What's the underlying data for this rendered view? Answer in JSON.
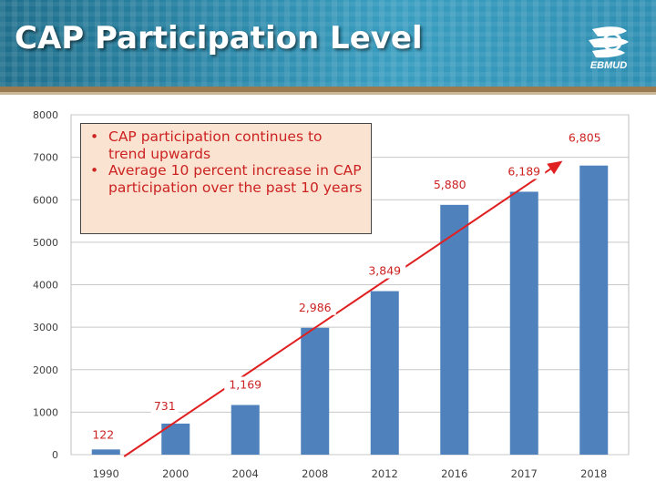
{
  "title": "CAP Participation Level",
  "logo_text": "EBMUD",
  "bullets": [
    "CAP participation continues to trend upwards",
    "Average 10 percent increase in CAP participation over the past 10 years"
  ],
  "colors": {
    "bar": "#4f81bd",
    "trend": "#e02020",
    "label": "#cc2222",
    "callout_bg": "#fbe3d1"
  },
  "chart_data": {
    "type": "bar",
    "categories": [
      "1990",
      "2000",
      "2004",
      "2008",
      "2012",
      "2016",
      "2017",
      "2018"
    ],
    "values": [
      122,
      731,
      1169,
      2986,
      3849,
      5880,
      6189,
      6805
    ],
    "data_labels": [
      "122",
      "731",
      "1,169",
      "2,986",
      "3,849",
      "5,880",
      "6,189",
      "6,805"
    ],
    "ylim": [
      0,
      8000
    ],
    "yticks": [
      0,
      1000,
      2000,
      3000,
      4000,
      5000,
      6000,
      7000,
      8000
    ],
    "grid": true,
    "trend_arrow": true,
    "xlabel": "",
    "ylabel": ""
  }
}
